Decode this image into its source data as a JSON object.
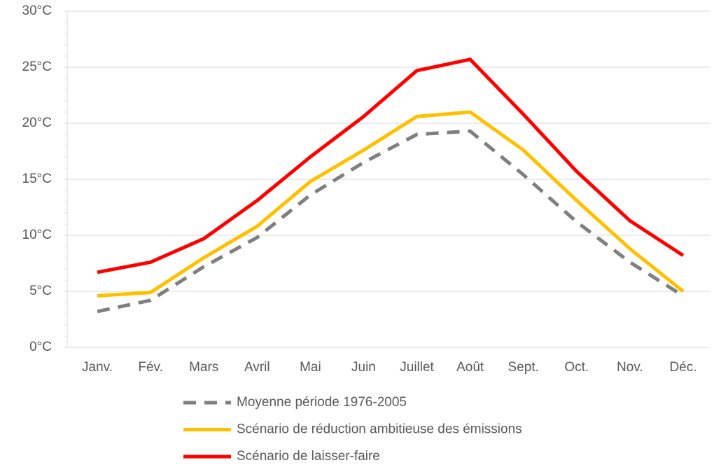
{
  "chart_data": {
    "type": "line",
    "categories": [
      "Janv.",
      "Fév.",
      "Mars",
      "Avril",
      "Mai",
      "Juin",
      "Juillet",
      "Août",
      "Sept.",
      "Oct.",
      "Nov.",
      "Déc."
    ],
    "series": [
      {
        "name": "Moyenne période 1976-2005",
        "color": "#7f7f7f",
        "line_style": "dashed",
        "values": [
          3.2,
          4.2,
          7.2,
          9.8,
          13.6,
          16.5,
          19.0,
          19.3,
          15.4,
          11.2,
          7.6,
          4.6
        ]
      },
      {
        "name": "Scénario de réduction ambitieuse des émissions",
        "color": "#ffc000",
        "line_style": "solid",
        "values": [
          4.6,
          4.9,
          8.0,
          10.8,
          14.8,
          17.6,
          20.6,
          21.0,
          17.6,
          13.1,
          8.8,
          5.0
        ]
      },
      {
        "name": "Scénario de laisser-faire",
        "color": "#ff0000",
        "line_style": "solid",
        "values": [
          6.7,
          7.6,
          9.7,
          13.1,
          17.0,
          20.6,
          24.7,
          25.7,
          20.8,
          15.7,
          11.3,
          8.2
        ]
      }
    ],
    "ylim": [
      0,
      30
    ],
    "yticks": [
      {
        "value": 0,
        "label": "0°C"
      },
      {
        "value": 5,
        "label": "5°C"
      },
      {
        "value": 10,
        "label": "10°C"
      },
      {
        "value": 15,
        "label": "15°C"
      },
      {
        "value": 20,
        "label": "20°C"
      },
      {
        "value": 25,
        "label": "25°C"
      },
      {
        "value": 30,
        "label": "30°C"
      }
    ],
    "grid": true,
    "legend": "bottom"
  }
}
